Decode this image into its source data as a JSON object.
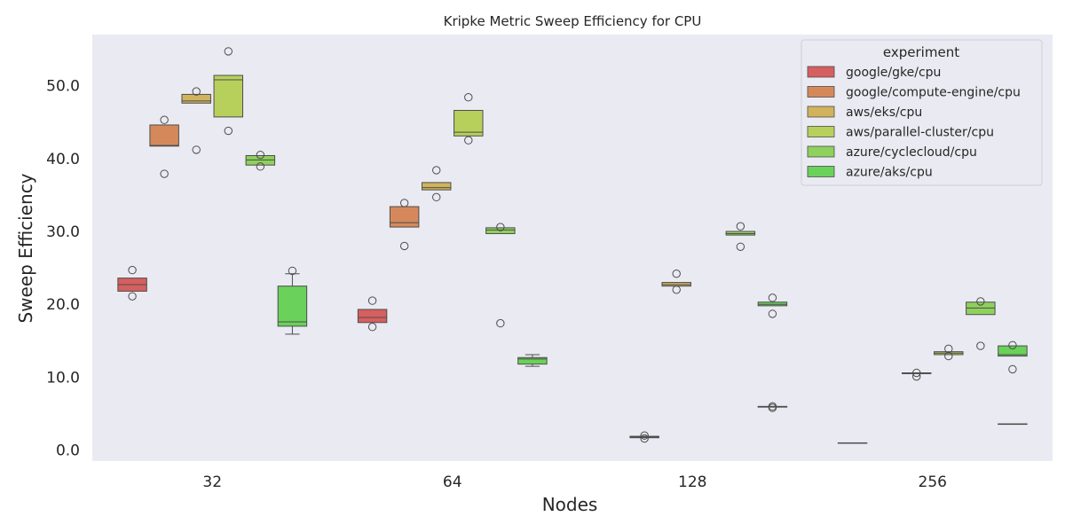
{
  "chart_data": {
    "type": "box",
    "title": "Kripke Metric Sweep Efficiency for CPU",
    "xlabel": "Nodes",
    "ylabel": "Sweep Efficiency",
    "categories": [
      "32",
      "64",
      "128",
      "256"
    ],
    "yticks": [
      "0.0",
      "10.0",
      "20.0",
      "30.0",
      "40.0",
      "50.0"
    ],
    "ylim": [
      -1.5,
      57
    ],
    "grid": false,
    "legend": {
      "title": "experiment",
      "placement": "top-right"
    },
    "series": [
      {
        "name": "google/gke/cpu",
        "color": "#d65f5f",
        "boxes": [
          {
            "q1": 21.8,
            "median": 22.7,
            "q3": 23.6,
            "whisker_low": 21.8,
            "whisker_high": 23.6,
            "fliers": [
              24.7,
              21.1
            ]
          },
          {
            "q1": 17.5,
            "median": 18.2,
            "q3": 19.3,
            "whisker_low": 17.5,
            "whisker_high": 19.3,
            "fliers": [
              20.5,
              16.9
            ]
          },
          null,
          {
            "q1": 1.0,
            "median": 1.0,
            "q3": 1.0,
            "whisker_low": 1.0,
            "whisker_high": 1.0,
            "fliers": []
          }
        ]
      },
      {
        "name": "google/compute-engine/cpu",
        "color": "#d5895b",
        "boxes": [
          {
            "q1": 41.7,
            "median": 41.8,
            "q3": 44.6,
            "whisker_low": 41.7,
            "whisker_high": 44.6,
            "fliers": [
              45.3,
              37.9
            ]
          },
          {
            "q1": 30.6,
            "median": 31.2,
            "q3": 33.4,
            "whisker_low": 30.6,
            "whisker_high": 33.4,
            "fliers": [
              33.9,
              28.0
            ]
          },
          {
            "q1": 1.7,
            "median": 1.8,
            "q3": 1.9,
            "whisker_low": 1.7,
            "whisker_high": 1.9,
            "fliers": [
              2.0,
              1.6
            ]
          },
          null
        ]
      },
      {
        "name": "aws/eks/cpu",
        "color": "#d1b35d",
        "boxes": [
          {
            "q1": 47.6,
            "median": 47.9,
            "q3": 48.8,
            "whisker_low": 47.6,
            "whisker_high": 48.8,
            "fliers": [
              49.2,
              41.2
            ]
          },
          {
            "q1": 35.7,
            "median": 36.0,
            "q3": 36.7,
            "whisker_low": 35.7,
            "whisker_high": 36.7,
            "fliers": [
              38.4,
              34.7
            ]
          },
          {
            "q1": 22.5,
            "median": 22.7,
            "q3": 23.0,
            "whisker_low": 22.5,
            "whisker_high": 23.0,
            "fliers": [
              24.2,
              22.0
            ]
          },
          {
            "q1": 10.5,
            "median": 10.5,
            "q3": 10.6,
            "whisker_low": 10.5,
            "whisker_high": 10.6,
            "fliers": [
              10.6,
              10.1
            ]
          }
        ]
      },
      {
        "name": "aws/parallel-cluster/cpu",
        "color": "#b7d05c",
        "boxes": [
          {
            "q1": 45.7,
            "median": 50.8,
            "q3": 51.4,
            "whisker_low": 45.7,
            "whisker_high": 51.4,
            "fliers": [
              54.7,
              43.8
            ]
          },
          {
            "q1": 43.1,
            "median": 43.6,
            "q3": 46.6,
            "whisker_low": 43.1,
            "whisker_high": 46.6,
            "fliers": [
              48.4,
              42.5
            ]
          },
          null,
          {
            "q1": 13.1,
            "median": 13.3,
            "q3": 13.5,
            "whisker_low": 13.1,
            "whisker_high": 13.5,
            "fliers": [
              13.9,
              12.9
            ]
          }
        ]
      },
      {
        "name": "azure/cyclecloud/cpu",
        "color": "#8ed15c",
        "boxes": [
          {
            "q1": 39.1,
            "median": 39.8,
            "q3": 40.4,
            "whisker_low": 39.1,
            "whisker_high": 40.4,
            "fliers": [
              40.5,
              38.9
            ]
          },
          {
            "q1": 29.7,
            "median": 30.2,
            "q3": 30.5,
            "whisker_low": 29.7,
            "whisker_high": 30.5,
            "fliers": [
              30.6,
              17.4
            ]
          },
          {
            "q1": 29.5,
            "median": 29.7,
            "q3": 30.0,
            "whisker_low": 29.5,
            "whisker_high": 30.0,
            "fliers": [
              30.7,
              27.9
            ]
          },
          {
            "q1": 18.6,
            "median": 19.5,
            "q3": 20.3,
            "whisker_low": 18.6,
            "whisker_high": 20.3,
            "fliers": [
              20.4,
              14.3
            ]
          }
        ]
      },
      {
        "name": "azure/aks/cpu",
        "color": "#6ad15a",
        "boxes": [
          {
            "q1": 17.0,
            "median": 17.6,
            "q3": 22.5,
            "whisker_low": 15.9,
            "whisker_high": 24.2,
            "fliers": [
              24.6
            ]
          },
          {
            "q1": 11.8,
            "median": 12.5,
            "q3": 12.7,
            "whisker_low": 11.5,
            "whisker_high": 13.1,
            "fliers": []
          },
          {
            "q1": 19.8,
            "median": 20.0,
            "q3": 20.3,
            "whisker_low": 19.8,
            "whisker_high": 20.3,
            "fliers": [
              20.9,
              18.7
            ]
          },
          {
            "q1": 12.9,
            "median": 13.1,
            "q3": 14.3,
            "whisker_low": 12.9,
            "whisker_high": 14.3,
            "fliers": [
              14.4,
              11.1
            ]
          }
        ]
      }
    ],
    "extra_boxes": [
      {
        "category": "128",
        "slot": 5,
        "color": "#6ad15a",
        "q1": 5.9,
        "median": 5.95,
        "q3": 6.0,
        "whisker_low": 5.9,
        "whisker_high": 6.0,
        "fliers": [
          6.0,
          5.8
        ]
      },
      {
        "category": "256",
        "slot": 5,
        "color": "#6ad15a",
        "q1": 3.6,
        "median": 3.6,
        "q3": 3.6,
        "whisker_low": 3.6,
        "whisker_high": 3.6,
        "fliers": []
      }
    ]
  }
}
